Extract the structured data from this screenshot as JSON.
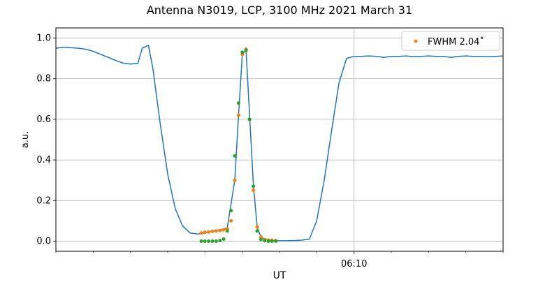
{
  "chart_data": {
    "type": "scatter",
    "title": "Antenna N3019, LCP, 3100 MHz 2021 March 31",
    "xlabel": "UT",
    "ylabel": "a.u.",
    "x_unit": "minutes",
    "xlim": [
      6.0,
      6.25
    ],
    "ylim": [
      -0.05,
      1.05
    ],
    "x_major_ticks": [
      {
        "value": 6.1667,
        "label": "06:10"
      }
    ],
    "x_minor_ticks": [
      6.0,
      6.0208,
      6.0417,
      6.0625,
      6.0833,
      6.1042,
      6.125,
      6.1458,
      6.1875,
      6.2083,
      6.2292,
      6.25
    ],
    "y_ticks": [
      0.0,
      0.2,
      0.4,
      0.6,
      0.8,
      1.0
    ],
    "y_tick_labels": [
      "0.0",
      "0.2",
      "0.4",
      "0.6",
      "0.8",
      "1.0"
    ],
    "grid": true,
    "legend": {
      "position": "top-right",
      "entries": [
        {
          "label": "FWHM 2.04$^\\circ$",
          "display": "FWHM 2.04˚",
          "color": "#ff7f0e"
        }
      ]
    },
    "series": [
      {
        "kind": "line",
        "color": "#1f77b4",
        "x": [
          6.0,
          6.0042,
          6.0083,
          6.0125,
          6.0167,
          6.0208,
          6.025,
          6.0292,
          6.0333,
          6.0375,
          6.0417,
          6.0458,
          6.0483,
          6.0517,
          6.0542,
          6.0583,
          6.0625,
          6.0667,
          6.0708,
          6.075,
          6.0792,
          6.0833,
          6.0875,
          6.0917,
          6.0958,
          6.1,
          6.1021,
          6.1042,
          6.1063,
          6.1083,
          6.1104,
          6.1125,
          6.1146,
          6.1167,
          6.1188,
          6.1208,
          6.125,
          6.1292,
          6.1333,
          6.1375,
          6.1417,
          6.1458,
          6.15,
          6.1542,
          6.1583,
          6.1625,
          6.1667,
          6.1708,
          6.175,
          6.1792,
          6.1833,
          6.1875,
          6.1917,
          6.1958,
          6.2,
          6.2042,
          6.2083,
          6.2125,
          6.2167,
          6.2208,
          6.225,
          6.2292,
          6.2333,
          6.2375,
          6.2417,
          6.2458,
          6.25
        ],
        "y": [
          0.95,
          0.955,
          0.953,
          0.95,
          0.945,
          0.935,
          0.92,
          0.905,
          0.89,
          0.877,
          0.872,
          0.875,
          0.95,
          0.965,
          0.85,
          0.58,
          0.33,
          0.16,
          0.075,
          0.04,
          0.035,
          0.04,
          0.05,
          0.055,
          0.065,
          0.3,
          0.62,
          0.92,
          0.94,
          0.62,
          0.28,
          0.07,
          0.02,
          0.01,
          0.005,
          0.003,
          0.002,
          0.002,
          0.003,
          0.005,
          0.01,
          0.1,
          0.3,
          0.55,
          0.78,
          0.9,
          0.91,
          0.91,
          0.912,
          0.91,
          0.905,
          0.91,
          0.91,
          0.912,
          0.908,
          0.91,
          0.912,
          0.91,
          0.91,
          0.905,
          0.91,
          0.912,
          0.91,
          0.91,
          0.908,
          0.91,
          0.912
        ]
      },
      {
        "kind": "points",
        "name": "FWHM 2.04˚",
        "color": "#ff7f0e",
        "x": [
          6.0813,
          6.0833,
          6.0854,
          6.0875,
          6.0896,
          6.0917,
          6.0938,
          6.0958,
          6.0979,
          6.1,
          6.1021,
          6.1042,
          6.1063,
          6.1083,
          6.1104,
          6.1125,
          6.1146,
          6.1167,
          6.1188,
          6.1208,
          6.1229
        ],
        "y": [
          0.04,
          0.043,
          0.045,
          0.048,
          0.05,
          0.052,
          0.056,
          0.06,
          0.1,
          0.3,
          0.62,
          0.92,
          0.945,
          0.6,
          0.25,
          0.07,
          0.02,
          0.008,
          0.005,
          0.004,
          0.003
        ]
      },
      {
        "kind": "points",
        "color": "#2ca02c",
        "x": [
          6.0813,
          6.0833,
          6.0854,
          6.0875,
          6.0896,
          6.0917,
          6.0938,
          6.0958,
          6.0979,
          6.1,
          6.1021,
          6.1042,
          6.1063,
          6.1083,
          6.1104,
          6.1125,
          6.1146,
          6.1167,
          6.1188,
          6.1208,
          6.1229
        ],
        "y": [
          0.0,
          0.0,
          0.0,
          0.0,
          0.0,
          0.003,
          0.01,
          0.05,
          0.15,
          0.42,
          0.68,
          0.93,
          0.94,
          0.6,
          0.27,
          0.05,
          0.008,
          0.002,
          0.0,
          0.0,
          0.0
        ]
      }
    ]
  }
}
